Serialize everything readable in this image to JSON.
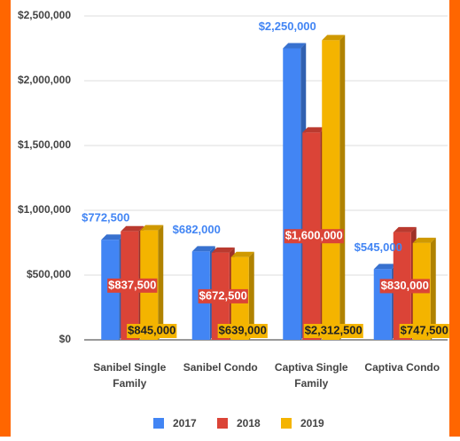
{
  "chart_data": {
    "type": "bar3d",
    "categories": [
      "Sanibel Single Family",
      "Sanibel Condo",
      "Captiva Single Family",
      "Captiva Condo"
    ],
    "series": [
      {
        "name": "2017",
        "color": "#4285f4",
        "values": [
          772500,
          682000,
          2250000,
          545000
        ],
        "value_labels": [
          "$772,500",
          "$682,000",
          "$2,250,000",
          "$545,000"
        ]
      },
      {
        "name": "2018",
        "color": "#db4437",
        "values": [
          837500,
          672500,
          1600000,
          830000
        ],
        "value_labels": [
          "$837,500",
          "$672,500",
          "$1,600,000",
          "$830,000"
        ]
      },
      {
        "name": "2019",
        "color": "#f4b400",
        "values": [
          845000,
          639000,
          2312500,
          747500
        ],
        "value_labels": [
          "$845,000",
          "$639,000",
          "$2,312,500",
          "$747,500"
        ]
      }
    ],
    "ylim": [
      0,
      2500000
    ],
    "yticks": [
      {
        "value": 0,
        "label": "$0"
      },
      {
        "value": 500000,
        "label": "$500,000"
      },
      {
        "value": 1000000,
        "label": "$1,000,000"
      },
      {
        "value": 1500000,
        "label": "$1,500,000"
      },
      {
        "value": 2000000,
        "label": "$2,000,000"
      },
      {
        "value": 2500000,
        "label": "$2,500,000"
      }
    ],
    "grid": true
  }
}
